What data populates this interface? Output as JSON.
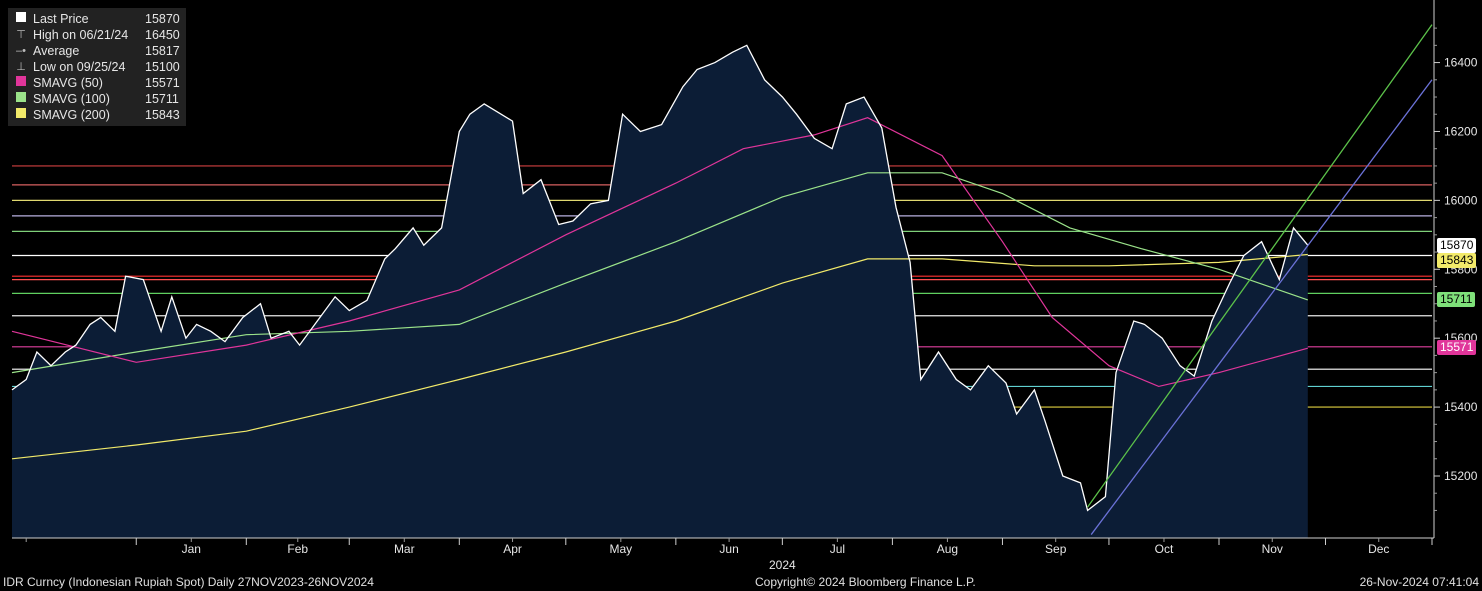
{
  "legend": [
    {
      "label": "Last Price",
      "value": "15870",
      "color": "#ffffff",
      "marker": "box"
    },
    {
      "label": "High on 06/21/24",
      "value": "16450",
      "color": "#bbbbbb",
      "marker": "high"
    },
    {
      "label": "Average",
      "value": "15817",
      "color": "#bbbbbb",
      "marker": "avg"
    },
    {
      "label": "Low on 09/25/24",
      "value": "15100",
      "color": "#bbbbbb",
      "marker": "low"
    },
    {
      "label": "SMAVG (50)",
      "value": "15571",
      "color": "#e0359a",
      "marker": "box"
    },
    {
      "label": "SMAVG (100)",
      "value": "15711",
      "color": "#9be38a",
      "marker": "box"
    },
    {
      "label": "SMAVG (200)",
      "value": "15843",
      "color": "#f2ea6a",
      "marker": "box"
    }
  ],
  "footer": {
    "left": "IDR Curncy (Indonesian Rupiah Spot)  Daily 27NOV2023-26NOV2024",
    "center": "Copyright© 2024 Bloomberg Finance L.P.",
    "right": "26-Nov-2024 07:41:04"
  },
  "value_tags": [
    {
      "text": "15870",
      "value": 15870,
      "bg": "#ffffff",
      "fg": "#000000"
    },
    {
      "text": "15843",
      "value": 15843,
      "bg": "#f2ea6a",
      "fg": "#000000"
    },
    {
      "text": "15711",
      "value": 15711,
      "bg": "#7fe07a",
      "fg": "#000000"
    },
    {
      "text": "15571",
      "value": 15571,
      "bg": "#e0359a",
      "fg": "#ffffff"
    }
  ],
  "chart_data": {
    "type": "area",
    "year_label": "2024",
    "ylim": [
      15020,
      16570
    ],
    "y_ticks": [
      15200,
      15400,
      15600,
      15800,
      16000,
      16200,
      16400
    ],
    "x_months": [
      "Jan",
      "Feb",
      "Mar",
      "Apr",
      "May",
      "Jun",
      "Jul",
      "Aug",
      "Sep",
      "Oct",
      "Nov",
      "Dec"
    ],
    "colors": {
      "last_price": "#ffffff",
      "area_fill": "#0c1d36",
      "sma50": "#e0359a",
      "sma100": "#9be38a",
      "sma200": "#f2ea6a",
      "trend_green": "#5cc24a",
      "trend_blue": "#6b72d8"
    },
    "series": [
      {
        "name": "Last Price",
        "x": [
          "2023-11-27",
          "2023-12-01",
          "2023-12-04",
          "2023-12-08",
          "2023-12-12",
          "2023-12-15",
          "2023-12-19",
          "2023-12-22",
          "2023-12-26",
          "2023-12-29",
          "2024-01-03",
          "2024-01-08",
          "2024-01-11",
          "2024-01-15",
          "2024-01-18",
          "2024-01-22",
          "2024-01-26",
          "2024-01-31",
          "2024-02-05",
          "2024-02-08",
          "2024-02-13",
          "2024-02-16",
          "2024-02-21",
          "2024-02-26",
          "2024-03-01",
          "2024-03-06",
          "2024-03-11",
          "2024-03-14",
          "2024-03-19",
          "2024-03-22",
          "2024-03-27",
          "2024-04-01",
          "2024-04-04",
          "2024-04-08",
          "2024-04-16",
          "2024-04-19",
          "2024-04-24",
          "2024-04-29",
          "2024-05-03",
          "2024-05-08",
          "2024-05-13",
          "2024-05-17",
          "2024-05-22",
          "2024-05-28",
          "2024-06-03",
          "2024-06-07",
          "2024-06-12",
          "2024-06-17",
          "2024-06-21",
          "2024-06-26",
          "2024-07-01",
          "2024-07-05",
          "2024-07-10",
          "2024-07-15",
          "2024-07-19",
          "2024-07-24",
          "2024-07-29",
          "2024-08-02",
          "2024-08-06",
          "2024-08-09",
          "2024-08-14",
          "2024-08-19",
          "2024-08-23",
          "2024-08-28",
          "2024-09-02",
          "2024-09-05",
          "2024-09-10",
          "2024-09-13",
          "2024-09-18",
          "2024-09-23",
          "2024-09-25",
          "2024-09-30",
          "2024-10-03",
          "2024-10-08",
          "2024-10-11",
          "2024-10-16",
          "2024-10-21",
          "2024-10-25",
          "2024-10-30",
          "2024-11-04",
          "2024-11-08",
          "2024-11-13",
          "2024-11-18",
          "2024-11-22",
          "2024-11-26"
        ],
        "y": [
          15450,
          15480,
          15560,
          15520,
          15560,
          15580,
          15640,
          15660,
          15620,
          15780,
          15770,
          15620,
          15720,
          15600,
          15640,
          15620,
          15590,
          15660,
          15700,
          15600,
          15620,
          15580,
          15650,
          15720,
          15680,
          15710,
          15830,
          15860,
          15920,
          15870,
          15920,
          16200,
          16250,
          16280,
          16230,
          16020,
          16060,
          15930,
          15940,
          15990,
          16000,
          16250,
          16200,
          16220,
          16330,
          16380,
          16400,
          16430,
          16450,
          16350,
          16300,
          16250,
          16180,
          16150,
          16280,
          16300,
          16210,
          15980,
          15820,
          15480,
          15560,
          15480,
          15450,
          15520,
          15470,
          15380,
          15450,
          15360,
          15200,
          15180,
          15100,
          15140,
          15500,
          15650,
          15640,
          15600,
          15520,
          15490,
          15650,
          15760,
          15840,
          15880,
          15770,
          15920,
          15870
        ]
      },
      {
        "name": "SMAVG (50)",
        "x": [
          "2023-11-27",
          "2024-01-01",
          "2024-02-01",
          "2024-03-01",
          "2024-04-01",
          "2024-05-01",
          "2024-06-01",
          "2024-06-20",
          "2024-07-10",
          "2024-07-25",
          "2024-08-15",
          "2024-09-01",
          "2024-09-15",
          "2024-10-01",
          "2024-10-15",
          "2024-11-01",
          "2024-11-26"
        ],
        "y": [
          15620,
          15530,
          15580,
          15650,
          15740,
          15900,
          16050,
          16150,
          16190,
          16240,
          16130,
          15880,
          15660,
          15520,
          15460,
          15500,
          15571
        ]
      },
      {
        "name": "SMAVG (100)",
        "x": [
          "2023-11-27",
          "2024-01-01",
          "2024-02-01",
          "2024-03-01",
          "2024-04-01",
          "2024-05-01",
          "2024-06-01",
          "2024-07-01",
          "2024-07-25",
          "2024-08-15",
          "2024-09-01",
          "2024-09-20",
          "2024-10-10",
          "2024-11-01",
          "2024-11-26"
        ],
        "y": [
          15500,
          15560,
          15610,
          15620,
          15640,
          15760,
          15880,
          16010,
          16080,
          16080,
          16020,
          15920,
          15860,
          15800,
          15711
        ]
      },
      {
        "name": "SMAVG (200)",
        "x": [
          "2023-11-27",
          "2024-01-01",
          "2024-02-01",
          "2024-03-01",
          "2024-04-01",
          "2024-05-01",
          "2024-06-01",
          "2024-07-01",
          "2024-07-25",
          "2024-08-15",
          "2024-09-10",
          "2024-10-01",
          "2024-11-01",
          "2024-11-26"
        ],
        "y": [
          15250,
          15290,
          15330,
          15400,
          15480,
          15560,
          15650,
          15760,
          15830,
          15830,
          15810,
          15810,
          15820,
          15843
        ]
      }
    ],
    "trendlines": [
      {
        "color": "#5cc24a",
        "x": [
          "2024-09-25",
          "2024-12-31"
        ],
        "y": [
          15110,
          16510
        ]
      },
      {
        "color": "#6b72d8",
        "x": [
          "2024-09-26",
          "2024-12-31"
        ],
        "y": [
          15030,
          16350
        ]
      }
    ],
    "horizontal_lines": [
      {
        "value": 16100,
        "color": "#d04040"
      },
      {
        "value": 16045,
        "color": "#d86060"
      },
      {
        "value": 16000,
        "color": "#e0d870"
      },
      {
        "value": 15955,
        "color": "#b8b0e0"
      },
      {
        "value": 15910,
        "color": "#7fd07a"
      },
      {
        "value": 15840,
        "color": "#ffffff"
      },
      {
        "value": 15780,
        "color": "#ff3030"
      },
      {
        "value": 15770,
        "color": "#ff5050"
      },
      {
        "value": 15730,
        "color": "#60d060"
      },
      {
        "value": 15665,
        "color": "#e8e8e8"
      },
      {
        "value": 15575,
        "color": "#e040a0"
      },
      {
        "value": 15510,
        "color": "#ffffff"
      },
      {
        "value": 15460,
        "color": "#60d0d0"
      },
      {
        "value": 15400,
        "color": "#e0d040"
      }
    ]
  }
}
